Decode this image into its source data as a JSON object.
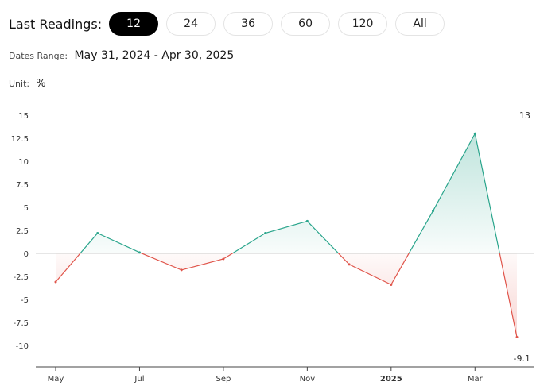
{
  "toolbar": {
    "label": "Last Readings:",
    "options": [
      "12",
      "24",
      "36",
      "60",
      "120",
      "All"
    ],
    "selected": "12"
  },
  "range": {
    "label": "Dates Range:",
    "value": "May 31, 2024 - Apr 30, 2025"
  },
  "unit": {
    "label": "Unit:",
    "value": "%"
  },
  "colors": {
    "positive": "#2aa58c",
    "negative": "#e0554b",
    "zero_line": "#cccccc"
  },
  "chart_data": {
    "type": "area",
    "x": [
      "2024-05-31",
      "2024-06-30",
      "2024-07-31",
      "2024-08-31",
      "2024-09-30",
      "2024-10-31",
      "2024-11-30",
      "2024-12-31",
      "2025-01-31",
      "2025-02-28",
      "2025-03-31",
      "2025-04-30"
    ],
    "values": [
      -3.1,
      2.2,
      0.1,
      -1.8,
      -0.6,
      2.2,
      3.5,
      -1.2,
      -3.4,
      4.6,
      13.0,
      -9.1
    ],
    "x_tick_labels": [
      "May",
      "Jul",
      "Sep",
      "Nov",
      "2025",
      "Mar"
    ],
    "y_ticks": [
      "15",
      "12.5",
      "10",
      "7.5",
      "5",
      "2.5",
      "0",
      "-2.5",
      "-5",
      "-7.5",
      "-10"
    ],
    "end_labels": {
      "max": "13",
      "min": "-9.1"
    },
    "ylim": [
      -12.5,
      15
    ],
    "grid": false
  }
}
